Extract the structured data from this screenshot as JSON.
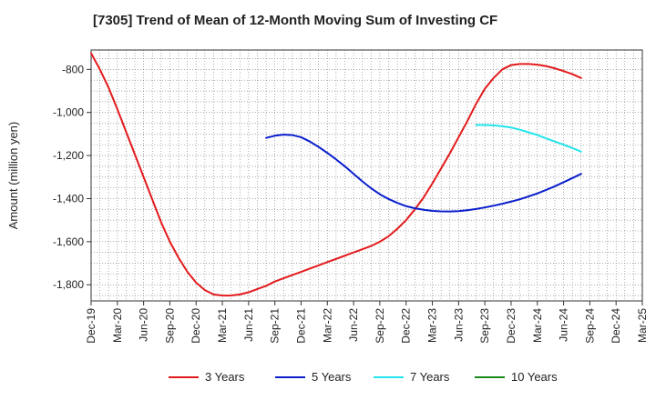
{
  "chart_data": {
    "type": "line",
    "title": "[7305]  Trend of Mean of 12-Month Moving Sum of Investing CF",
    "xlabel": "",
    "ylabel": "Amount (million yen)",
    "ylim": [
      -1875,
      -710
    ],
    "yticks": [
      -800,
      -1000,
      -1200,
      -1400,
      -1600,
      -1800
    ],
    "ytick_labels": [
      "-800",
      "-1,000",
      "-1,200",
      "-1,400",
      "-1,600",
      "-1,800"
    ],
    "x_start": "Dec-19",
    "x_end": "Mar-25",
    "xtick_labels": [
      "Dec-19",
      "Mar-20",
      "Jun-20",
      "Sep-20",
      "Dec-20",
      "Mar-21",
      "Jun-21",
      "Sep-21",
      "Dec-21",
      "Mar-22",
      "Jun-22",
      "Sep-22",
      "Dec-22",
      "Mar-23",
      "Jun-23",
      "Sep-23",
      "Dec-23",
      "Mar-24",
      "Jun-24",
      "Sep-24",
      "Dec-24",
      "Mar-25"
    ],
    "grid": true,
    "legend_position": "bottom",
    "series": [
      {
        "name": "3 Years",
        "color": "#e31a1c",
        "points": [
          [
            "Dec-19",
            -725
          ],
          [
            "Jan-20",
            -800
          ],
          [
            "Feb-20",
            -885
          ],
          [
            "Mar-20",
            -985
          ],
          [
            "Apr-20",
            -1090
          ],
          [
            "May-20",
            -1195
          ],
          [
            "Jun-20",
            -1300
          ],
          [
            "Jul-20",
            -1405
          ],
          [
            "Aug-20",
            -1510
          ],
          [
            "Sep-20",
            -1600
          ],
          [
            "Oct-20",
            -1675
          ],
          [
            "Nov-20",
            -1740
          ],
          [
            "Dec-20",
            -1790
          ],
          [
            "Jan-21",
            -1825
          ],
          [
            "Feb-21",
            -1845
          ],
          [
            "Mar-21",
            -1850
          ],
          [
            "Apr-21",
            -1850
          ],
          [
            "May-21",
            -1845
          ],
          [
            "Jun-21",
            -1835
          ],
          [
            "Jul-21",
            -1820
          ],
          [
            "Aug-21",
            -1805
          ],
          [
            "Sep-21",
            -1785
          ],
          [
            "Oct-21",
            -1770
          ],
          [
            "Nov-21",
            -1755
          ],
          [
            "Dec-21",
            -1740
          ],
          [
            "Jan-22",
            -1725
          ],
          [
            "Feb-22",
            -1710
          ],
          [
            "Mar-22",
            -1695
          ],
          [
            "Apr-22",
            -1680
          ],
          [
            "May-22",
            -1665
          ],
          [
            "Jun-22",
            -1650
          ],
          [
            "Jul-22",
            -1635
          ],
          [
            "Aug-22",
            -1620
          ],
          [
            "Sep-22",
            -1600
          ],
          [
            "Oct-22",
            -1575
          ],
          [
            "Nov-22",
            -1540
          ],
          [
            "Dec-22",
            -1500
          ],
          [
            "Jan-23",
            -1450
          ],
          [
            "Feb-23",
            -1395
          ],
          [
            "Mar-23",
            -1330
          ],
          [
            "Apr-23",
            -1260
          ],
          [
            "May-23",
            -1190
          ],
          [
            "Jun-23",
            -1115
          ],
          [
            "Jul-23",
            -1040
          ],
          [
            "Aug-23",
            -960
          ],
          [
            "Sep-23",
            -890
          ],
          [
            "Oct-23",
            -840
          ],
          [
            "Nov-23",
            -800
          ],
          [
            "Dec-23",
            -780
          ],
          [
            "Jan-24",
            -775
          ],
          [
            "Feb-24",
            -775
          ],
          [
            "Mar-24",
            -778
          ],
          [
            "Apr-24",
            -785
          ],
          [
            "May-24",
            -795
          ],
          [
            "Jun-24",
            -808
          ],
          [
            "Jul-24",
            -822
          ],
          [
            "Aug-24",
            -840
          ]
        ]
      },
      {
        "name": "5 Years",
        "color": "#0a1ecc",
        "points": [
          [
            "Aug-21",
            -1118
          ],
          [
            "Sep-21",
            -1108
          ],
          [
            "Oct-21",
            -1103
          ],
          [
            "Nov-21",
            -1105
          ],
          [
            "Dec-21",
            -1115
          ],
          [
            "Jan-22",
            -1135
          ],
          [
            "Feb-22",
            -1160
          ],
          [
            "Mar-22",
            -1188
          ],
          [
            "Apr-22",
            -1218
          ],
          [
            "May-22",
            -1250
          ],
          [
            "Jun-22",
            -1285
          ],
          [
            "Jul-22",
            -1320
          ],
          [
            "Aug-22",
            -1352
          ],
          [
            "Sep-22",
            -1380
          ],
          [
            "Oct-22",
            -1402
          ],
          [
            "Nov-22",
            -1420
          ],
          [
            "Dec-22",
            -1435
          ],
          [
            "Jan-23",
            -1445
          ],
          [
            "Feb-23",
            -1452
          ],
          [
            "Mar-23",
            -1457
          ],
          [
            "Apr-23",
            -1459
          ],
          [
            "May-23",
            -1460
          ],
          [
            "Jun-23",
            -1458
          ],
          [
            "Jul-23",
            -1454
          ],
          [
            "Aug-23",
            -1448
          ],
          [
            "Sep-23",
            -1441
          ],
          [
            "Oct-23",
            -1433
          ],
          [
            "Nov-23",
            -1424
          ],
          [
            "Dec-23",
            -1414
          ],
          [
            "Jan-24",
            -1403
          ],
          [
            "Feb-24",
            -1390
          ],
          [
            "Mar-24",
            -1376
          ],
          [
            "Apr-24",
            -1360
          ],
          [
            "May-24",
            -1343
          ],
          [
            "Jun-24",
            -1324
          ],
          [
            "Jul-24",
            -1305
          ],
          [
            "Aug-24",
            -1285
          ]
        ]
      },
      {
        "name": "7 Years",
        "color": "#22e4ec",
        "points": [
          [
            "Aug-23",
            -1058
          ],
          [
            "Sep-23",
            -1058
          ],
          [
            "Oct-23",
            -1060
          ],
          [
            "Nov-23",
            -1064
          ],
          [
            "Dec-23",
            -1070
          ],
          [
            "Jan-24",
            -1080
          ],
          [
            "Feb-24",
            -1092
          ],
          [
            "Mar-24",
            -1105
          ],
          [
            "Apr-24",
            -1120
          ],
          [
            "May-24",
            -1135
          ],
          [
            "Jun-24",
            -1150
          ],
          [
            "Jul-24",
            -1165
          ],
          [
            "Aug-24",
            -1182
          ]
        ]
      },
      {
        "name": "10 Years",
        "color": "#1a8a1a",
        "points": []
      }
    ]
  }
}
